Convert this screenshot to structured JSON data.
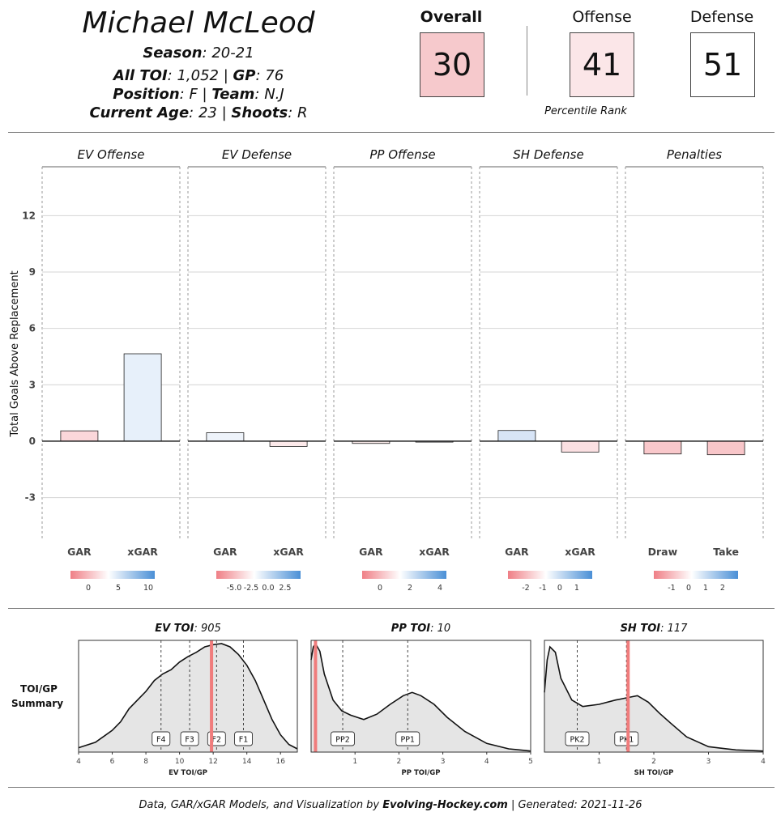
{
  "player": {
    "name": "Michael McLeod",
    "season_label": "Season",
    "season": "20-21",
    "toi_label": "All TOI",
    "toi": "1,052",
    "gp_label": "GP",
    "gp": "76",
    "position_label": "Position",
    "position": "F",
    "team_label": "Team",
    "team": "N.J",
    "age_label": "Current Age",
    "age": "23",
    "shoots_label": "Shoots",
    "shoots": "R"
  },
  "scores": {
    "overall_label": "Overall",
    "overall": "30",
    "overall_color": "#f6c9cc",
    "offense_label": "Offense",
    "offense": "41",
    "offense_color": "#fbe6e8",
    "defense_label": "Defense",
    "defense": "51",
    "defense_color": "#ffffff",
    "percentile_caption": "Percentile Rank"
  },
  "colors": {
    "neg": "#ef7f86",
    "pos": "#4a8fd6",
    "mid": "#ffffff",
    "density_line": "#f07c7c"
  },
  "chart_data": [
    {
      "type": "bar",
      "ylabel": "Total Goals Above Replacement",
      "ylim": [
        -5.3,
        14.6
      ],
      "yticks": [
        12,
        9,
        6,
        3,
        0,
        -3
      ],
      "grid": true,
      "panels": [
        {
          "title": "EV Offense",
          "categories": [
            "GAR",
            "xGAR"
          ],
          "values": [
            0.55,
            4.65
          ],
          "colors": [
            "#fbd7da",
            "#e7f0fa"
          ],
          "scale": {
            "ticks": [
              "0",
              "5",
              "10"
            ]
          }
        },
        {
          "title": "EV Defense",
          "categories": [
            "GAR",
            "xGAR"
          ],
          "values": [
            0.45,
            -0.28
          ],
          "colors": [
            "#eef3fa",
            "#fdeaeb"
          ],
          "scale": {
            "ticks": [
              "-5.0",
              "-2.5",
              "0.0",
              "2.5"
            ]
          }
        },
        {
          "title": "PP Offense",
          "categories": [
            "GAR",
            "xGAR"
          ],
          "values": [
            -0.12,
            -0.05
          ],
          "colors": [
            "#fbeceb",
            "#f3f5f8"
          ],
          "scale": {
            "ticks": [
              "0",
              "2",
              "4"
            ]
          }
        },
        {
          "title": "SH Defense",
          "categories": [
            "GAR",
            "xGAR"
          ],
          "values": [
            0.57,
            -0.58
          ],
          "colors": [
            "#d7e4f6",
            "#fbe0e2"
          ],
          "scale": {
            "ticks": [
              "-2",
              "-1",
              "0",
              "1"
            ]
          }
        },
        {
          "title": "Penalties",
          "categories": [
            "Draw",
            "Take"
          ],
          "values": [
            -0.68,
            -0.72
          ],
          "colors": [
            "#f9c8cb",
            "#f8c6c9"
          ],
          "scale": {
            "ticks": [
              "-1",
              "0",
              "1",
              "2"
            ]
          }
        }
      ]
    },
    {
      "type": "area",
      "summary_label_line1": "TOI/GP",
      "summary_label_line2": "Summary",
      "panels": [
        {
          "title_bold": "EV TOI",
          "title_value": "905",
          "xlabel": "EV TOI/GP",
          "xlim": [
            4,
            17
          ],
          "xticks": [
            4,
            6,
            8,
            10,
            12,
            14,
            16
          ],
          "density_x": [
            4,
            5,
            6,
            6.5,
            7,
            7.5,
            8,
            8.5,
            9,
            9.5,
            10,
            10.5,
            11,
            11.5,
            12,
            12.5,
            13,
            13.5,
            14,
            14.5,
            15,
            15.5,
            16,
            16.5,
            17
          ],
          "density_y": [
            0.04,
            0.09,
            0.2,
            0.28,
            0.4,
            0.48,
            0.56,
            0.66,
            0.72,
            0.76,
            0.83,
            0.88,
            0.92,
            0.97,
            0.99,
            1.0,
            0.97,
            0.9,
            0.8,
            0.66,
            0.48,
            0.3,
            0.16,
            0.07,
            0.03
          ],
          "markers": [
            {
              "label": "F4",
              "x": 8.9
            },
            {
              "label": "F3",
              "x": 10.6
            },
            {
              "label": "F2",
              "x": 12.2
            },
            {
              "label": "F1",
              "x": 13.8
            }
          ],
          "player_x": 11.9
        },
        {
          "title_bold": "PP TOI",
          "title_value": "10",
          "xlabel": "PP TOI/GP",
          "xlim": [
            0,
            5
          ],
          "xticks": [
            1,
            2,
            3,
            4,
            5
          ],
          "density_x": [
            0,
            0.05,
            0.1,
            0.2,
            0.3,
            0.5,
            0.7,
            0.9,
            1.2,
            1.5,
            1.8,
            2.1,
            2.3,
            2.5,
            2.8,
            3.1,
            3.5,
            4.0,
            4.5,
            5.0
          ],
          "density_y": [
            0.85,
            0.97,
            1.0,
            0.93,
            0.72,
            0.48,
            0.38,
            0.34,
            0.3,
            0.35,
            0.44,
            0.52,
            0.55,
            0.52,
            0.44,
            0.32,
            0.19,
            0.08,
            0.03,
            0.01
          ],
          "markers": [
            {
              "label": "PP2",
              "x": 0.72
            },
            {
              "label": "PP1",
              "x": 2.2
            }
          ],
          "player_x": 0.1
        },
        {
          "title_bold": "SH TOI",
          "title_value": "117",
          "xlabel": "SH TOI/GP",
          "xlim": [
            0,
            4
          ],
          "xticks": [
            1,
            2,
            3,
            4
          ],
          "density_x": [
            0,
            0.05,
            0.1,
            0.2,
            0.3,
            0.5,
            0.7,
            1.0,
            1.3,
            1.5,
            1.7,
            1.9,
            2.1,
            2.3,
            2.6,
            3.0,
            3.5,
            4.0
          ],
          "density_y": [
            0.55,
            0.85,
            0.97,
            0.92,
            0.68,
            0.48,
            0.42,
            0.44,
            0.48,
            0.5,
            0.52,
            0.46,
            0.36,
            0.27,
            0.14,
            0.05,
            0.02,
            0.01
          ],
          "markers": [
            {
              "label": "PK2",
              "x": 0.6
            },
            {
              "label": "PK1",
              "x": 1.5
            }
          ],
          "player_x": 1.53
        }
      ]
    }
  ],
  "footer": {
    "pre": "Data, GAR/xGAR Models, and Visualization by ",
    "brand": "Evolving-Hockey.com",
    "post": " | Generated: 2021-11-26"
  }
}
